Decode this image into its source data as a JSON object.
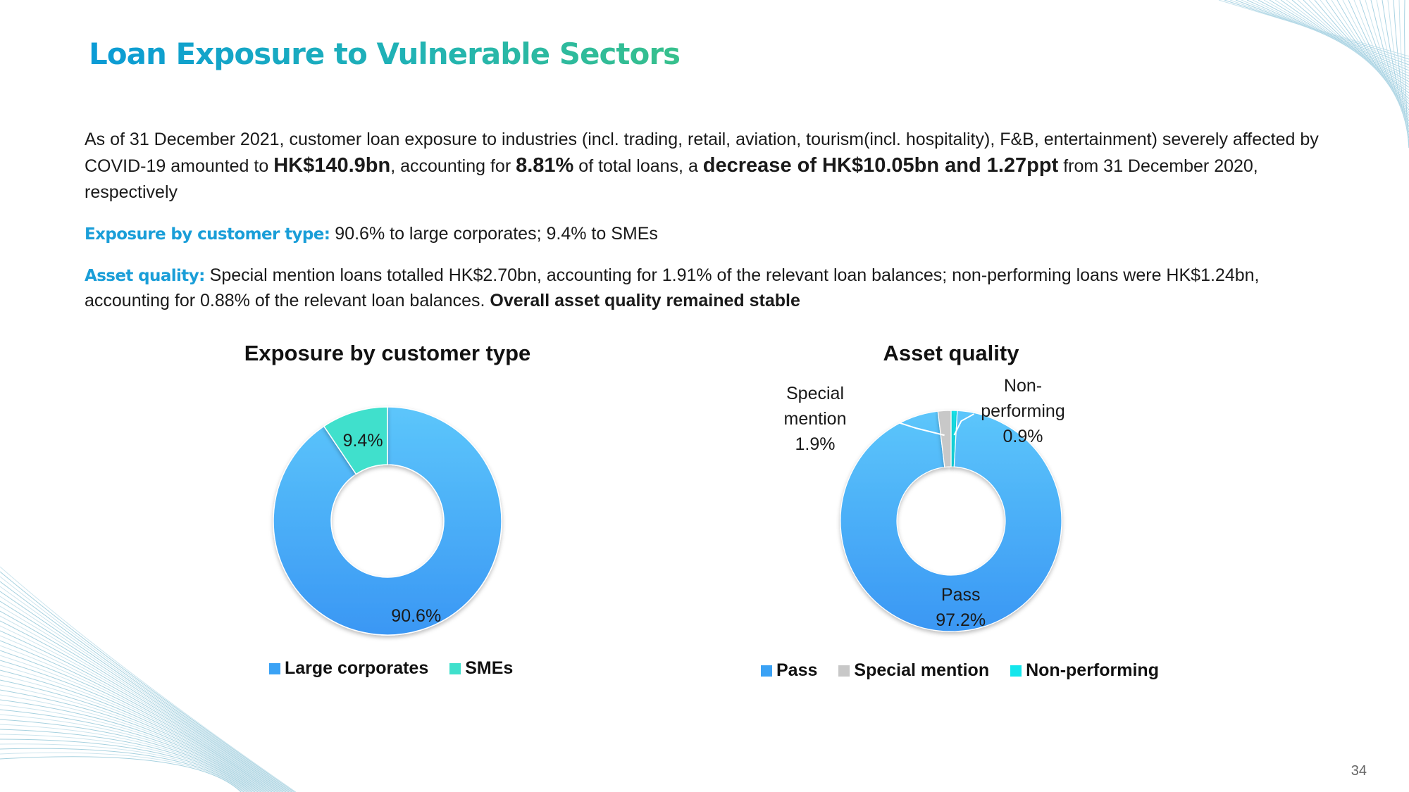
{
  "title": "Loan Exposure to Vulnerable Sectors",
  "paragraph1": {
    "t1": "As of 31 December 2021, customer loan exposure to industries (incl. trading, retail, aviation, tourism(incl. hospitality), F&B, entertainment) severely affected by COVID-19 amounted to ",
    "b1": "HK$140.9bn",
    "t2": ", accounting for ",
    "b2": "8.81%",
    "t3": " of total loans, a ",
    "b3": "decrease of HK$10.05bn and 1.27ppt",
    "t4": " from 31 December 2020, respectively"
  },
  "paragraph2": {
    "label": "Exposure by customer type:",
    "text": " 90.6% to large corporates; 9.4% to SMEs"
  },
  "paragraph3": {
    "label": "Asset quality:",
    "text": " Special mention loans totalled HK$2.70bn, accounting for 1.91% of the relevant loan balances; non-performing loans were HK$1.24bn, accounting for 0.88% of the relevant loan balances. ",
    "bold": "Overall asset quality remained stable"
  },
  "page_number": "34",
  "colors": {
    "blue": "#3aa2f5",
    "teal": "#3fe0cc",
    "gray": "#c8c8c8",
    "cyan": "#14e6ec",
    "title_gradient_start": "#0b9bd6",
    "title_gradient_end": "#37c08c"
  },
  "chart_data": [
    {
      "type": "pie",
      "variant": "donut",
      "title": "Exposure by customer type",
      "categories": [
        "Large corporates",
        "SMEs"
      ],
      "values": [
        90.6,
        9.4
      ],
      "labels": [
        "90.6%",
        "9.4%"
      ],
      "legend": "bottom"
    },
    {
      "type": "pie",
      "variant": "donut",
      "title": "Asset quality",
      "categories": [
        "Pass",
        "Special mention",
        "Non-performing"
      ],
      "values": [
        97.2,
        1.9,
        0.9
      ],
      "labels": [
        [
          "Pass",
          "97.2%"
        ],
        [
          "Special",
          "mention",
          "1.9%"
        ],
        [
          "Non-",
          "performing",
          "0.9%"
        ]
      ],
      "legend": "bottom"
    }
  ]
}
